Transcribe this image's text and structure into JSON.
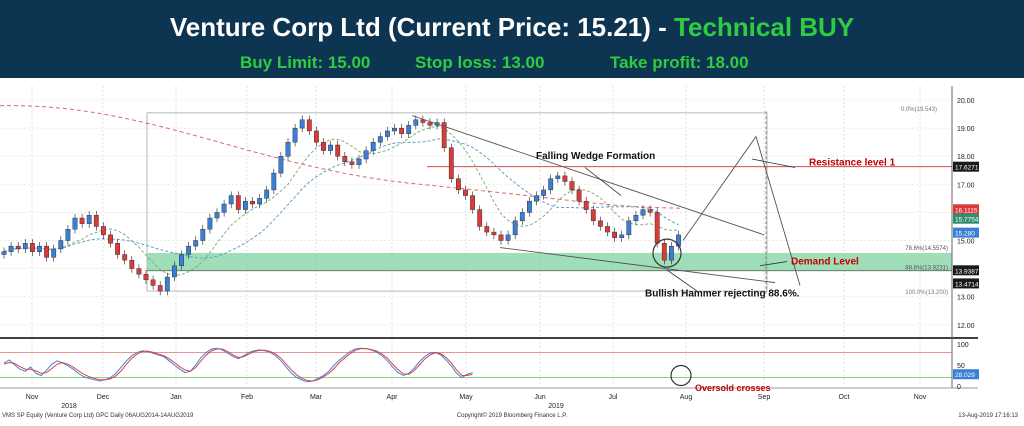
{
  "header": {
    "title_main": "Venture Corp Ltd (Current Price: 15.21) - ",
    "title_accent": "Technical BUY",
    "buy_limit": "Buy Limit: 15.00",
    "stop_loss": "Stop loss: 13.00",
    "take_profit": "Take profit: 18.00"
  },
  "colors": {
    "header_bg": "#0d3552",
    "accent": "#2ecc40",
    "up_candle": "#3a7fd5",
    "down_candle": "#d93b3b",
    "demand_zone": "#7fd3a0",
    "resistance": "#cc3333",
    "annotation_red": "#c00000"
  },
  "annotations": {
    "wedge": "Falling Wedge Formation",
    "resistance": "Resistance level 1",
    "demand": "Demand Level",
    "hammer": "Bullish Hammer rejecting 88.6%.",
    "oversold": "Oversold crosses"
  },
  "fib_labels": {
    "f0": "0.0%(19.543)",
    "f786": "78.6%(14.5574)",
    "f886": "88.6%(13.9231)",
    "f100": "100.0%(13.200)"
  },
  "price_tags": [
    {
      "label": "17.6271",
      "value": 17.6271,
      "color": "#1a1a1a"
    },
    {
      "label": "16.1115",
      "value": 16.1115,
      "color": "#d93b3b"
    },
    {
      "label": "15.7754",
      "value": 15.7754,
      "color": "#2f8f6f"
    },
    {
      "label": "15.280",
      "value": 15.28,
      "color": "#3a7fd5"
    },
    {
      "label": "13.9387",
      "value": 13.9387,
      "color": "#1a1a1a"
    },
    {
      "label": "13.4714",
      "value": 13.4714,
      "color": "#1a1a1a"
    }
  ],
  "osc_tags": [
    {
      "label": "28.029",
      "value": 28.029,
      "color": "#3a7fd5"
    }
  ],
  "footer": {
    "left": "VMS SP Equity (Venture Corp Ltd) GPC  Daily 06AUG2014-14AUG2019",
    "center": "Copyright© 2019 Bloomberg Finance L.P.",
    "right": "13-Aug-2019 17:16:13"
  },
  "chart_data": {
    "type": "candlestick",
    "x_labels": [
      "Nov",
      "Dec",
      "Jan",
      "Feb",
      "Mar",
      "Apr",
      "May",
      "Jun",
      "Jul",
      "Aug",
      "Sep",
      "Oct",
      "Nov"
    ],
    "year_labels": [
      "2018",
      "2019"
    ],
    "y_ticks": [
      12.0,
      13.0,
      14.0,
      15.0,
      16.0,
      17.0,
      18.0,
      19.0,
      20.0
    ],
    "ylim": [
      11.6,
      20.5
    ],
    "osc_ticks": [
      0,
      50,
      100
    ],
    "osc_ylim": [
      0,
      100
    ],
    "closes": [
      14.6,
      14.8,
      14.7,
      14.9,
      14.6,
      14.8,
      14.4,
      14.7,
      15.0,
      15.4,
      15.8,
      15.6,
      15.9,
      15.5,
      15.2,
      14.9,
      14.5,
      14.3,
      14.0,
      13.8,
      13.6,
      13.4,
      13.2,
      13.7,
      14.1,
      14.5,
      14.8,
      15.0,
      15.4,
      15.8,
      16.0,
      16.3,
      16.6,
      16.1,
      16.4,
      16.3,
      16.5,
      16.8,
      17.4,
      18.0,
      18.5,
      19.0,
      19.3,
      18.9,
      18.5,
      18.2,
      18.4,
      18.0,
      17.8,
      17.7,
      17.9,
      18.2,
      18.5,
      18.7,
      18.9,
      19.0,
      18.8,
      19.1,
      19.3,
      19.2,
      19.1,
      19.2,
      18.3,
      17.2,
      16.8,
      16.6,
      16.1,
      15.5,
      15.3,
      15.2,
      15.0,
      15.2,
      15.7,
      16.0,
      16.4,
      16.6,
      16.8,
      17.2,
      17.3,
      17.1,
      16.8,
      16.4,
      16.1,
      15.7,
      15.5,
      15.3,
      15.1,
      15.2,
      15.7,
      15.9,
      16.1,
      16.0,
      14.9,
      14.3,
      14.8,
      15.2
    ],
    "stochastic_k": [
      55,
      62,
      50,
      40,
      35,
      45,
      30,
      25,
      38,
      52,
      60,
      55,
      48,
      40,
      30,
      22,
      18,
      15,
      12,
      15,
      20,
      30,
      45,
      60,
      72,
      80,
      84,
      82,
      78,
      74,
      70,
      60,
      50,
      40,
      32,
      35,
      50,
      68,
      80,
      88,
      90,
      86,
      78,
      70,
      65,
      72,
      80,
      84,
      86,
      84,
      80,
      72,
      60,
      45,
      30,
      20,
      14,
      10,
      12,
      18,
      25,
      35,
      50,
      62,
      72,
      82,
      88,
      90,
      89,
      86,
      80,
      72,
      60,
      45,
      32,
      25,
      30,
      42,
      58,
      70,
      78,
      80,
      74,
      62,
      48,
      30,
      20,
      28,
      32
    ],
    "stochastic_d": [
      52,
      56,
      54,
      46,
      40,
      40,
      36,
      30,
      32,
      42,
      52,
      56,
      52,
      45,
      36,
      28,
      22,
      18,
      15,
      15,
      17,
      24,
      36,
      52,
      66,
      76,
      82,
      83,
      80,
      76,
      72,
      65,
      56,
      46,
      38,
      35,
      44,
      60,
      74,
      84,
      88,
      88,
      82,
      74,
      68,
      70,
      76,
      82,
      85,
      85,
      82,
      76,
      66,
      52,
      38,
      26,
      18,
      13,
      12,
      15,
      22,
      30,
      42,
      56,
      67,
      77,
      85,
      89,
      89,
      87,
      83,
      76,
      66,
      52,
      39,
      29,
      28,
      36,
      50,
      64,
      74,
      79,
      77,
      68,
      55,
      38,
      25,
      25,
      28
    ]
  }
}
